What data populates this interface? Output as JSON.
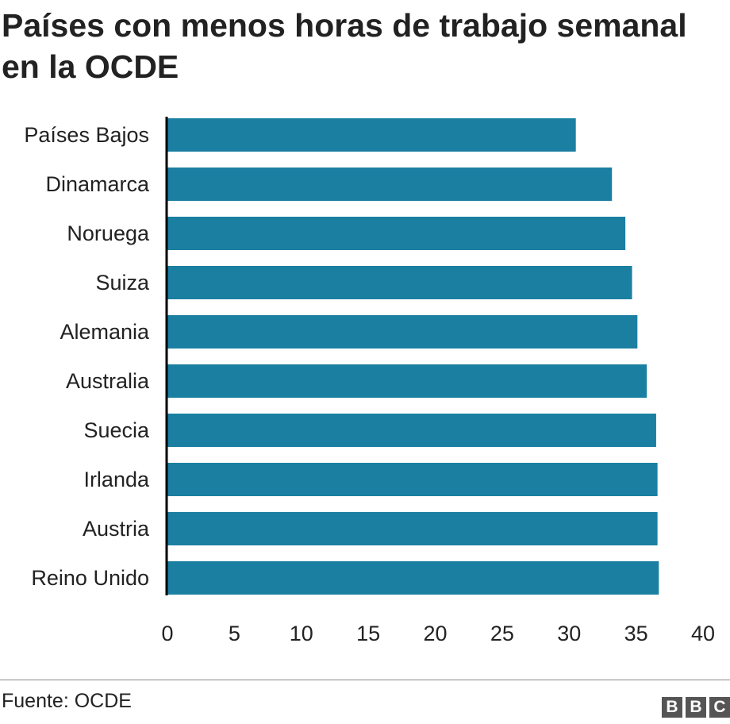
{
  "title": "Países con menos horas de trabajo semanal en la OCDE",
  "source": "Fuente: OCDE",
  "logo_letters": [
    "B",
    "B",
    "C"
  ],
  "colors": {
    "bar": "#1a7fa1",
    "axis": "#000000",
    "text": "#222222"
  },
  "chart_data": {
    "type": "bar",
    "orientation": "horizontal",
    "title": "Países con menos horas de trabajo semanal en la OCDE",
    "categories": [
      "Países Bajos",
      "Dinamarca",
      "Noruega",
      "Suiza",
      "Alemania",
      "Australia",
      "Suecia",
      "Irlanda",
      "Austria",
      "Reino Unido"
    ],
    "values": [
      30.5,
      33.2,
      34.2,
      34.7,
      35.1,
      35.8,
      36.5,
      36.6,
      36.6,
      36.7
    ],
    "xlim": [
      0,
      40
    ],
    "xticks": [
      0,
      5,
      10,
      15,
      20,
      25,
      30,
      35,
      40
    ],
    "xlabel": "",
    "ylabel": "",
    "grid": false,
    "legend": "none"
  }
}
